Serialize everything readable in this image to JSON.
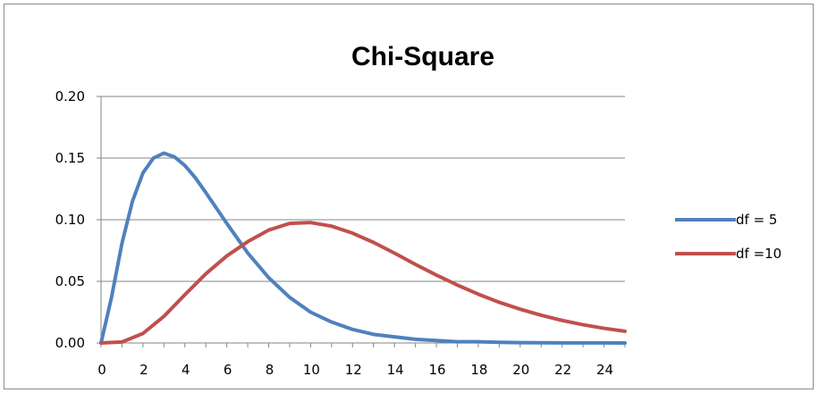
{
  "chart_data": {
    "type": "line",
    "title": "Chi-Square",
    "xlabel": "",
    "ylabel": "",
    "xlim": [
      0,
      25
    ],
    "ylim": [
      0,
      0.2
    ],
    "x_ticks": [
      "0",
      "2",
      "4",
      "6",
      "8",
      "10",
      "12",
      "14",
      "16",
      "18",
      "20",
      "22",
      "24"
    ],
    "y_ticks": [
      "0.00",
      "0.05",
      "0.10",
      "0.15",
      "0.20"
    ],
    "grid": "horizontal",
    "legend_position": "right",
    "series": [
      {
        "name": "df = 5",
        "color": "#4f81bd",
        "x": [
          0,
          0.5,
          1,
          1.5,
          2,
          2.5,
          3,
          3.5,
          4,
          4.5,
          5,
          6,
          7,
          8,
          9,
          10,
          11,
          12,
          13,
          14,
          15,
          16,
          17,
          18,
          19,
          20,
          21,
          22,
          23,
          24,
          25
        ],
        "y": [
          0,
          0.037,
          0.081,
          0.115,
          0.138,
          0.15,
          0.154,
          0.151,
          0.144,
          0.134,
          0.122,
          0.097,
          0.073,
          0.053,
          0.037,
          0.025,
          0.017,
          0.011,
          0.007,
          0.005,
          0.003,
          0.002,
          0.001,
          0.001,
          0.0005,
          0.0003,
          0.0002,
          0.0001,
          0.0001,
          5e-05,
          3e-05
        ]
      },
      {
        "name": "df =10",
        "color": "#c0504d",
        "x": [
          0,
          1,
          2,
          3,
          4,
          5,
          6,
          7,
          8,
          9,
          10,
          11,
          12,
          13,
          14,
          15,
          16,
          17,
          18,
          19,
          20,
          21,
          22,
          23,
          24,
          25
        ],
        "y": [
          0,
          0.0008,
          0.0077,
          0.0216,
          0.0391,
          0.0561,
          0.0706,
          0.0822,
          0.0916,
          0.097,
          0.0977,
          0.0948,
          0.0891,
          0.0816,
          0.0729,
          0.0638,
          0.0551,
          0.047,
          0.0396,
          0.033,
          0.0274,
          0.0225,
          0.0183,
          0.0148,
          0.0119,
          0.0095
        ]
      }
    ]
  }
}
